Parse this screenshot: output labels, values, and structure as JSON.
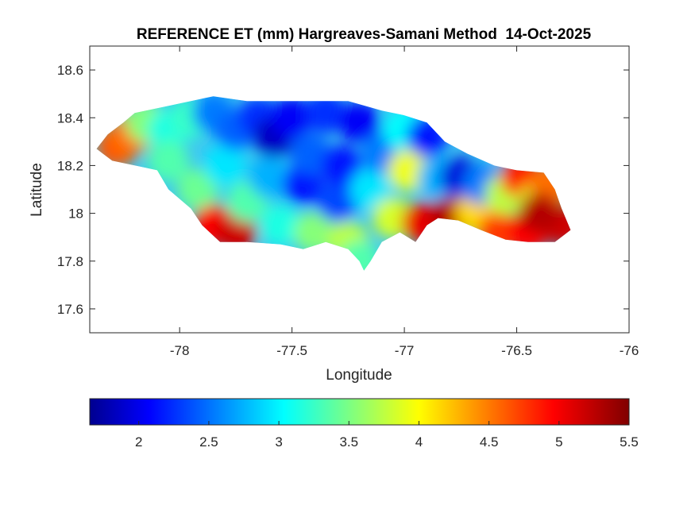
{
  "chart_data": {
    "type": "heatmap",
    "title": "REFERENCE ET (mm) Hargreaves-Samani Method  14-Oct-2025",
    "xlabel": "Longitude",
    "ylabel": "Latitude",
    "xlim": [
      -78.4,
      -76
    ],
    "ylim": [
      17.5,
      18.7
    ],
    "xticks": [
      -78,
      -77.5,
      -77,
      -76.5,
      -76
    ],
    "yticks": [
      17.6,
      17.8,
      18,
      18.2,
      18.4,
      18.6
    ],
    "colormap": "jet",
    "colorbar": {
      "location": "bottom",
      "limits": [
        1.65,
        5.5
      ],
      "ticks": [
        2,
        2.5,
        3,
        3.5,
        4,
        4.5,
        5,
        5.5
      ]
    },
    "grid": false,
    "region_outline": [
      [
        -78.37,
        18.27
      ],
      [
        -78.32,
        18.33
      ],
      [
        -78.25,
        18.38
      ],
      [
        -78.2,
        18.42
      ],
      [
        -78.1,
        18.44
      ],
      [
        -77.95,
        18.47
      ],
      [
        -77.85,
        18.49
      ],
      [
        -77.7,
        18.47
      ],
      [
        -77.55,
        18.47
      ],
      [
        -77.4,
        18.47
      ],
      [
        -77.25,
        18.47
      ],
      [
        -77.1,
        18.43
      ],
      [
        -77.0,
        18.41
      ],
      [
        -76.9,
        18.38
      ],
      [
        -76.82,
        18.3
      ],
      [
        -76.72,
        18.25
      ],
      [
        -76.6,
        18.2
      ],
      [
        -76.5,
        18.18
      ],
      [
        -76.38,
        18.17
      ],
      [
        -76.33,
        18.1
      ],
      [
        -76.3,
        18.02
      ],
      [
        -76.26,
        17.93
      ],
      [
        -76.33,
        17.88
      ],
      [
        -76.45,
        17.88
      ],
      [
        -76.55,
        17.89
      ],
      [
        -76.66,
        17.93
      ],
      [
        -76.76,
        17.97
      ],
      [
        -76.85,
        17.98
      ],
      [
        -76.9,
        17.95
      ],
      [
        -76.95,
        17.88
      ],
      [
        -77.02,
        17.92
      ],
      [
        -77.1,
        17.88
      ],
      [
        -77.15,
        17.8
      ],
      [
        -77.18,
        17.76
      ],
      [
        -77.2,
        17.8
      ],
      [
        -77.25,
        17.85
      ],
      [
        -77.35,
        17.88
      ],
      [
        -77.45,
        17.85
      ],
      [
        -77.55,
        17.87
      ],
      [
        -77.7,
        17.88
      ],
      [
        -77.82,
        17.88
      ],
      [
        -77.9,
        17.95
      ],
      [
        -77.95,
        18.02
      ],
      [
        -78.05,
        18.1
      ],
      [
        -78.1,
        18.18
      ],
      [
        -78.2,
        18.2
      ],
      [
        -78.3,
        18.22
      ]
    ],
    "values": [
      {
        "lon": -78.28,
        "lat": 18.28,
        "et": 4.7
      },
      {
        "lon": -78.22,
        "lat": 18.33,
        "et": 4.6
      },
      {
        "lon": -78.15,
        "lat": 18.38,
        "et": 3.6
      },
      {
        "lon": -78.05,
        "lat": 18.35,
        "et": 3.2
      },
      {
        "lon": -78.05,
        "lat": 18.22,
        "et": 3.4
      },
      {
        "lon": -77.95,
        "lat": 18.4,
        "et": 3.3
      },
      {
        "lon": -77.92,
        "lat": 18.1,
        "et": 3.5
      },
      {
        "lon": -77.85,
        "lat": 18.42,
        "et": 2.6
      },
      {
        "lon": -77.85,
        "lat": 17.95,
        "et": 5.0
      },
      {
        "lon": -77.8,
        "lat": 18.2,
        "et": 3.0
      },
      {
        "lon": -77.75,
        "lat": 18.35,
        "et": 2.5
      },
      {
        "lon": -77.75,
        "lat": 17.92,
        "et": 5.2
      },
      {
        "lon": -77.7,
        "lat": 18.05,
        "et": 3.4
      },
      {
        "lon": -77.65,
        "lat": 18.4,
        "et": 2.3
      },
      {
        "lon": -77.6,
        "lat": 18.15,
        "et": 2.8
      },
      {
        "lon": -77.58,
        "lat": 18.32,
        "et": 1.9
      },
      {
        "lon": -77.55,
        "lat": 17.95,
        "et": 3.2
      },
      {
        "lon": -77.5,
        "lat": 18.4,
        "et": 2.1
      },
      {
        "lon": -77.45,
        "lat": 18.12,
        "et": 2.2
      },
      {
        "lon": -77.42,
        "lat": 18.25,
        "et": 2.5
      },
      {
        "lon": -77.4,
        "lat": 17.92,
        "et": 3.6
      },
      {
        "lon": -77.35,
        "lat": 18.42,
        "et": 2.3
      },
      {
        "lon": -77.3,
        "lat": 18.05,
        "et": 2.4
      },
      {
        "lon": -77.28,
        "lat": 18.2,
        "et": 2.2
      },
      {
        "lon": -77.25,
        "lat": 17.88,
        "et": 3.8
      },
      {
        "lon": -77.2,
        "lat": 18.38,
        "et": 2.1
      },
      {
        "lon": -77.15,
        "lat": 18.1,
        "et": 3.0
      },
      {
        "lon": -77.1,
        "lat": 18.25,
        "et": 2.6
      },
      {
        "lon": -77.05,
        "lat": 17.98,
        "et": 3.9
      },
      {
        "lon": -77.0,
        "lat": 18.35,
        "et": 3.1
      },
      {
        "lon": -76.98,
        "lat": 18.18,
        "et": 4.0
      },
      {
        "lon": -76.92,
        "lat": 17.96,
        "et": 5.1
      },
      {
        "lon": -76.9,
        "lat": 18.32,
        "et": 2.2
      },
      {
        "lon": -76.85,
        "lat": 18.15,
        "et": 2.8
      },
      {
        "lon": -76.8,
        "lat": 17.98,
        "et": 5.3
      },
      {
        "lon": -76.75,
        "lat": 18.15,
        "et": 2.0
      },
      {
        "lon": -76.68,
        "lat": 18.0,
        "et": 4.2
      },
      {
        "lon": -76.65,
        "lat": 18.12,
        "et": 2.6
      },
      {
        "lon": -76.58,
        "lat": 17.92,
        "et": 4.8
      },
      {
        "lon": -76.55,
        "lat": 18.08,
        "et": 3.8
      },
      {
        "lon": -76.48,
        "lat": 18.15,
        "et": 4.9
      },
      {
        "lon": -76.45,
        "lat": 17.92,
        "et": 5.0
      },
      {
        "lon": -76.4,
        "lat": 18.05,
        "et": 3.9
      },
      {
        "lon": -76.35,
        "lat": 18.12,
        "et": 4.6
      },
      {
        "lon": -76.3,
        "lat": 17.95,
        "et": 5.2
      },
      {
        "lon": -77.2,
        "lat": 17.8,
        "et": 3.4
      },
      {
        "lon": -76.4,
        "lat": 18.0,
        "et": 5.3
      }
    ]
  }
}
